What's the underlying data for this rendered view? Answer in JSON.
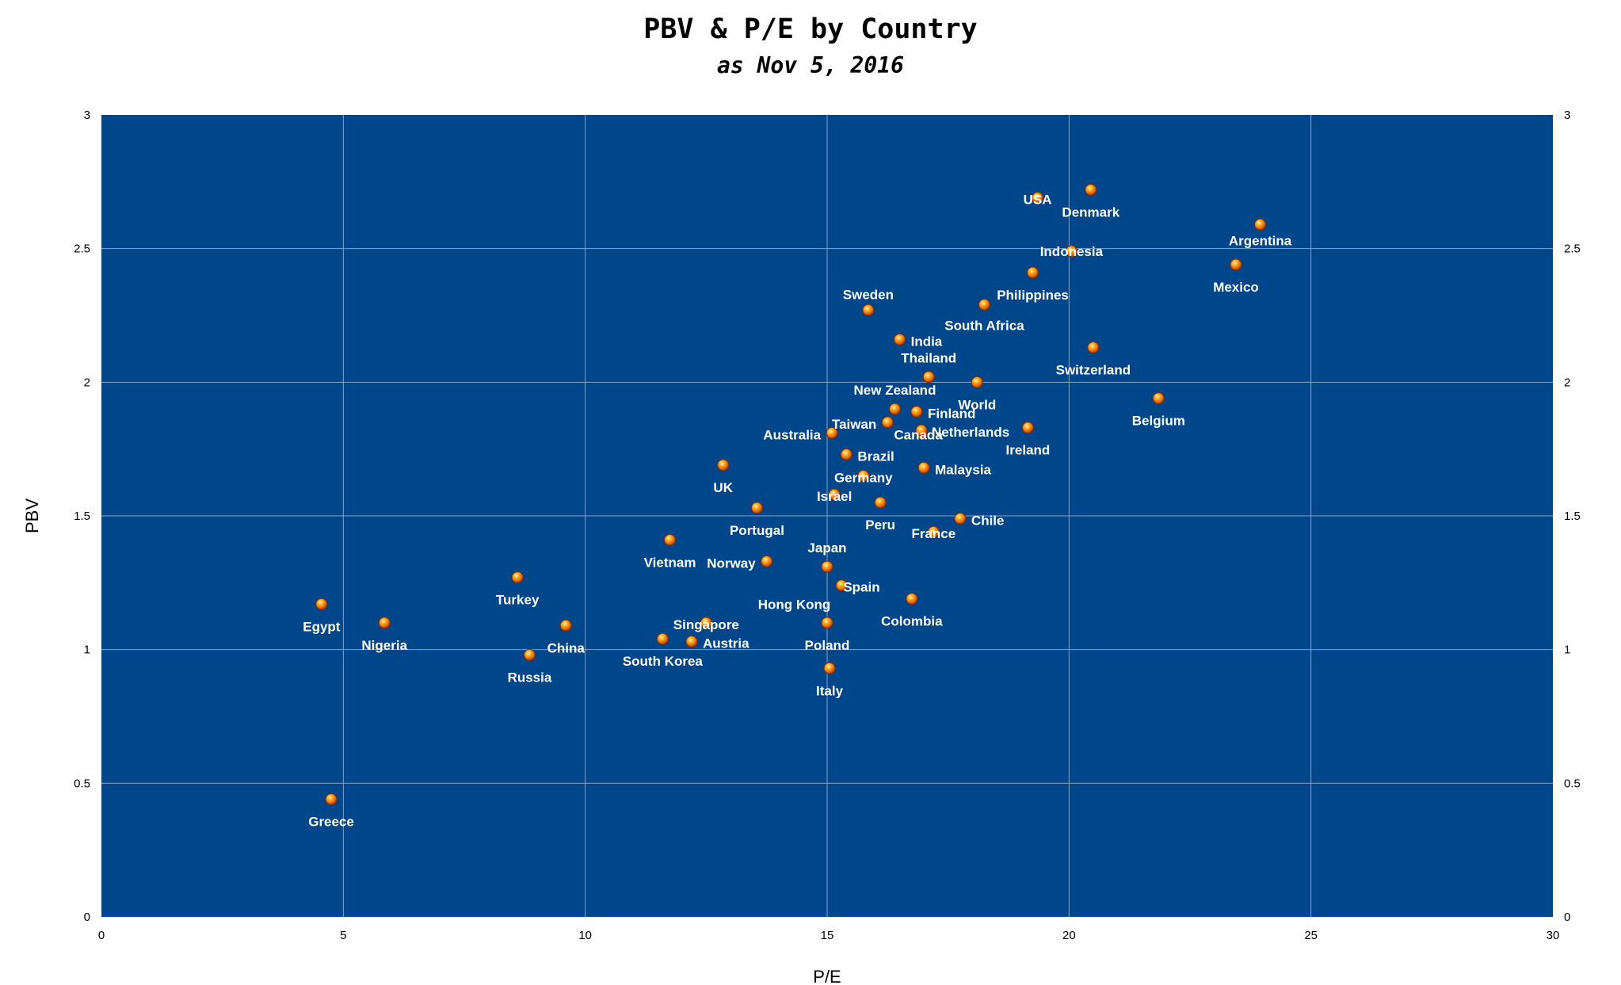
{
  "chart_data": {
    "type": "scatter",
    "title": "PBV & P/E by Country",
    "subtitle": "as Nov 5, 2016",
    "xlabel": "P/E",
    "ylabel": "PBV",
    "xlim": [
      0,
      30
    ],
    "ylim": [
      0,
      3
    ],
    "x_ticks": [
      "0",
      "5",
      "10",
      "15",
      "20",
      "25",
      "30"
    ],
    "y_ticks": [
      "0",
      "0.5",
      "1",
      "1.5",
      "2",
      "2.5",
      "3"
    ],
    "grid": true,
    "legend": "none",
    "colors": {
      "plot_bg": "#00468b",
      "grid": "#8aa3c4",
      "marker": "#f07818",
      "label": "#ffffff"
    },
    "points": [
      {
        "name": "USA",
        "x": 19.35,
        "y": 2.69
      },
      {
        "name": "Denmark",
        "x": 20.45,
        "y": 2.72
      },
      {
        "name": "Argentina",
        "x": 23.95,
        "y": 2.59
      },
      {
        "name": "Indonesia",
        "x": 20.05,
        "y": 2.49
      },
      {
        "name": "Mexico",
        "x": 23.45,
        "y": 2.44
      },
      {
        "name": "Philippines",
        "x": 19.25,
        "y": 2.41
      },
      {
        "name": "Sweden",
        "x": 15.85,
        "y": 2.27
      },
      {
        "name": "South Africa",
        "x": 18.25,
        "y": 2.29
      },
      {
        "name": "India",
        "x": 16.5,
        "y": 2.16
      },
      {
        "name": "Switzerland",
        "x": 20.5,
        "y": 2.13
      },
      {
        "name": "Thailand",
        "x": 17.1,
        "y": 2.02
      },
      {
        "name": "World",
        "x": 18.1,
        "y": 2.0
      },
      {
        "name": "Belgium",
        "x": 21.85,
        "y": 1.94
      },
      {
        "name": "New Zealand",
        "x": 16.4,
        "y": 1.9
      },
      {
        "name": "Finland",
        "x": 16.85,
        "y": 1.89
      },
      {
        "name": "Taiwan",
        "x": 16.25,
        "y": 1.85
      },
      {
        "name": "Canada",
        "x": 16.95,
        "y": 1.81
      },
      {
        "name": "Netherlands",
        "x": 16.95,
        "y": 1.82
      },
      {
        "name": "Australia",
        "x": 15.1,
        "y": 1.81
      },
      {
        "name": "Ireland",
        "x": 19.15,
        "y": 1.83
      },
      {
        "name": "Brazil",
        "x": 15.4,
        "y": 1.73
      },
      {
        "name": "UK",
        "x": 12.85,
        "y": 1.69
      },
      {
        "name": "Malaysia",
        "x": 17.0,
        "y": 1.68
      },
      {
        "name": "Germany",
        "x": 15.75,
        "y": 1.65
      },
      {
        "name": "Israel",
        "x": 15.15,
        "y": 1.58
      },
      {
        "name": "Peru",
        "x": 16.1,
        "y": 1.55
      },
      {
        "name": "Portugal",
        "x": 13.55,
        "y": 1.53
      },
      {
        "name": "Chile",
        "x": 17.75,
        "y": 1.49
      },
      {
        "name": "France",
        "x": 17.2,
        "y": 1.44
      },
      {
        "name": "Vietnam",
        "x": 11.75,
        "y": 1.41
      },
      {
        "name": "Norway",
        "x": 13.75,
        "y": 1.33
      },
      {
        "name": "Japan",
        "x": 15.0,
        "y": 1.31
      },
      {
        "name": "Turkey",
        "x": 8.6,
        "y": 1.27
      },
      {
        "name": "Hong Kong",
        "x": 15.3,
        "y": 1.24
      },
      {
        "name": "Spain",
        "x": 15.3,
        "y": 1.24
      },
      {
        "name": "Colombia",
        "x": 16.75,
        "y": 1.19
      },
      {
        "name": "Egypt",
        "x": 4.55,
        "y": 1.17
      },
      {
        "name": "Nigeria",
        "x": 5.85,
        "y": 1.1
      },
      {
        "name": "Singapore",
        "x": 12.5,
        "y": 1.1
      },
      {
        "name": "Poland",
        "x": 15.0,
        "y": 1.1
      },
      {
        "name": "China",
        "x": 9.6,
        "y": 1.09
      },
      {
        "name": "South Korea",
        "x": 11.6,
        "y": 1.04
      },
      {
        "name": "Austria",
        "x": 12.2,
        "y": 1.03
      },
      {
        "name": "Russia",
        "x": 8.85,
        "y": 0.98
      },
      {
        "name": "Italy",
        "x": 15.05,
        "y": 0.93
      },
      {
        "name": "Greece",
        "x": 4.75,
        "y": 0.44
      }
    ]
  }
}
